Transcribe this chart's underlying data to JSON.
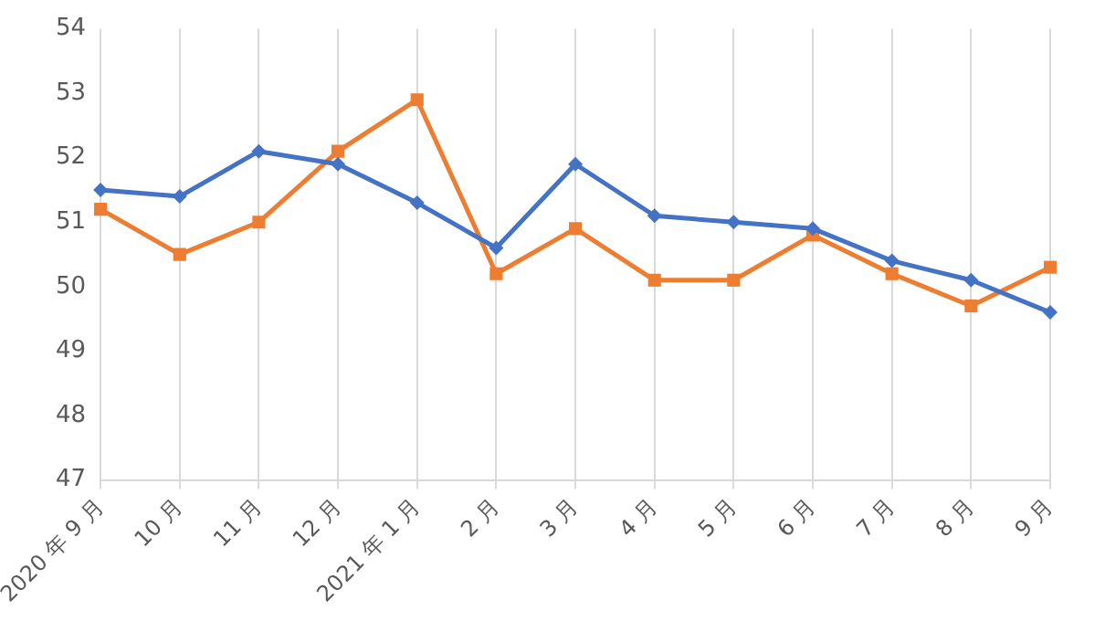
{
  "chart_data": {
    "type": "line",
    "categories": [
      "2020 年 9 月",
      "10 月",
      "11 月",
      "12 月",
      "2021 年 1 月",
      "2 月",
      "3 月",
      "4 月",
      "5 月",
      "6 月",
      "7 月",
      "8 月",
      "9 月"
    ],
    "series": [
      {
        "color": "#4472c4",
        "marker": "diamond",
        "values": [
          51.5,
          51.4,
          52.1,
          51.9,
          51.3,
          50.6,
          51.9,
          51.1,
          51.0,
          50.9,
          50.4,
          50.1,
          49.6
        ]
      },
      {
        "color": "#ed7d31",
        "marker": "square",
        "values": [
          51.2,
          50.5,
          51.0,
          52.1,
          52.9,
          50.2,
          50.9,
          50.1,
          50.1,
          50.8,
          50.2,
          49.7,
          50.3
        ]
      }
    ],
    "ylim": [
      47,
      54
    ],
    "yticks": [
      47,
      48,
      49,
      50,
      51,
      52,
      53,
      54
    ],
    "grid": "x",
    "legend": false
  }
}
